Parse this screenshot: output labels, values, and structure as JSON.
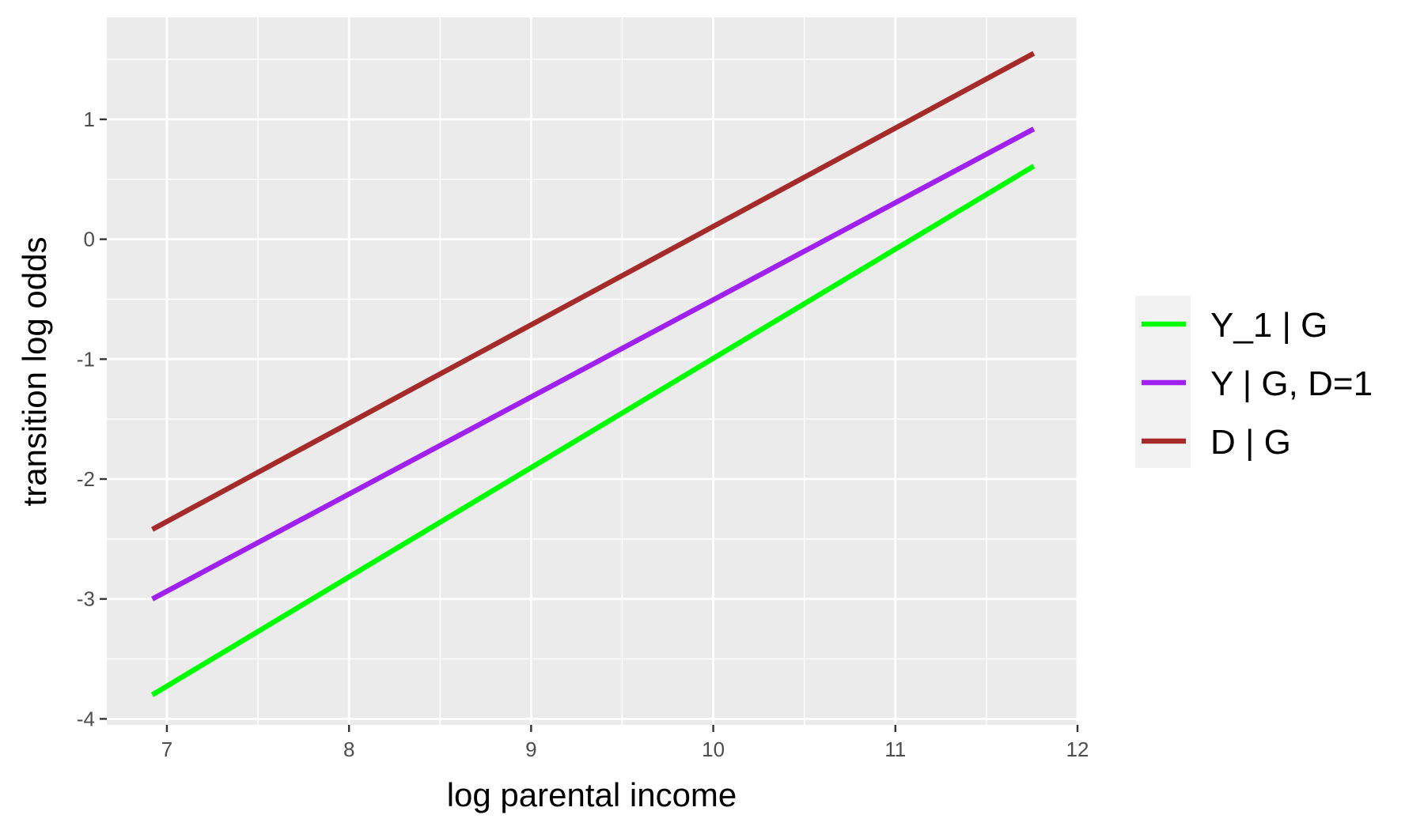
{
  "chart_data": {
    "type": "line",
    "xlabel": "log parental income",
    "ylabel": "transition log odds",
    "xlim": [
      6.67,
      12.0
    ],
    "ylim": [
      -4.05,
      1.85
    ],
    "x_ticks": [
      7,
      8,
      9,
      10,
      11,
      12
    ],
    "x_tick_labels": [
      "7",
      "8",
      "9",
      "10",
      "11",
      "12"
    ],
    "y_ticks": [
      -4,
      -3,
      -2,
      -1,
      0,
      1
    ],
    "y_tick_labels": [
      "-4",
      "-3",
      "-2",
      "-1",
      "0",
      "1"
    ],
    "grid": true,
    "panel_background": "#ebebeb",
    "legend_position": "right",
    "series": [
      {
        "name": "Y_1 | G",
        "color": "#00ff00",
        "x": [
          6.92,
          11.76
        ],
        "y": [
          -3.8,
          0.61
        ]
      },
      {
        "name": "Y | G, D=1",
        "color": "#a020f0",
        "x": [
          6.92,
          11.76
        ],
        "y": [
          -3.0,
          0.92
        ]
      },
      {
        "name": "D | G",
        "color": "#a52a2a",
        "x": [
          6.92,
          11.76
        ],
        "y": [
          -2.42,
          1.55
        ]
      }
    ]
  }
}
